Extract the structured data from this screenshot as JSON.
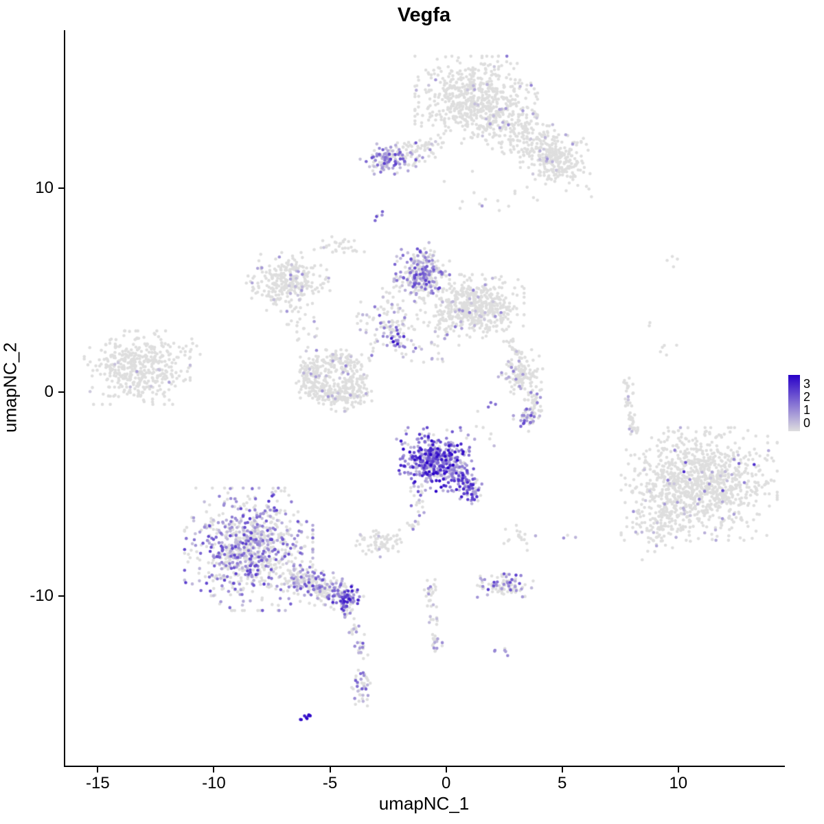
{
  "title": "Vegfa",
  "axes": {
    "x": {
      "label": "umapNC_1",
      "ticks": [
        -15,
        -10,
        -5,
        0,
        5,
        10
      ]
    },
    "y": {
      "label": "umapNC_2",
      "ticks": [
        10,
        0,
        -10
      ]
    }
  },
  "legend": {
    "labels": [
      "3",
      "2",
      "1",
      "0"
    ],
    "color_high": "#2800C8",
    "color_low": "#DEDEDE"
  },
  "chart_data": {
    "type": "scatter",
    "title": "Vegfa",
    "xlabel": "umapNC_1",
    "ylabel": "umapNC_2",
    "xlim": [
      -16.4,
      14.5
    ],
    "ylim": [
      -18.3,
      17.7
    ],
    "grid": false,
    "legend_position": "right",
    "point_radius": 2.3,
    "color_scale": {
      "low": "#DEDEDE",
      "high": "#2800C8",
      "domain": [
        0,
        3
      ]
    },
    "clusters": [
      {
        "name": "top-main",
        "shape": "blob",
        "cx": 1.3,
        "cy": 14.3,
        "sx": 1.1,
        "sy": 0.9,
        "n": 620,
        "frac": 0.04,
        "vmin": 0.3,
        "vmax": 1.4
      },
      {
        "name": "top-right-arm",
        "shape": "arm",
        "x1": 2.6,
        "y1": 13.4,
        "x2": 5.5,
        "y2": 10.9,
        "jitter": 0.6,
        "n": 300,
        "frac": 0.03,
        "vmin": 0.3,
        "vmax": 1.2
      },
      {
        "name": "top-right-blob",
        "shape": "blob",
        "cx": 4.5,
        "cy": 11.4,
        "sx": 0.55,
        "sy": 0.45,
        "n": 110,
        "frac": 0.04,
        "vmin": 0.3,
        "vmax": 1.2
      },
      {
        "name": "top-below-sparse",
        "shape": "blob",
        "cx": 1.9,
        "cy": 9.6,
        "sx": 1.1,
        "sy": 0.6,
        "n": 16,
        "frac": 0.1,
        "vmin": 0.4,
        "vmax": 1.2
      },
      {
        "name": "topleft-purple",
        "shape": "blob",
        "cx": -2.5,
        "cy": 11.45,
        "sx": 0.5,
        "sy": 0.32,
        "n": 130,
        "frac": 0.55,
        "vmin": 0.4,
        "vmax": 2.2
      },
      {
        "name": "topleft-trail",
        "shape": "arm",
        "x1": -1.7,
        "y1": 11.6,
        "x2": -0.2,
        "y2": 12.2,
        "jitter": 0.3,
        "n": 55,
        "frac": 0.1,
        "vmin": 0.3,
        "vmax": 1.2
      },
      {
        "name": "connector-dots",
        "shape": "blob",
        "cx": -2.9,
        "cy": 8.7,
        "sx": 0.12,
        "sy": 0.15,
        "n": 5,
        "frac": 0.8,
        "vmin": 1.0,
        "vmax": 2.0
      },
      {
        "name": "mid-gray-left",
        "shape": "blob",
        "cx": -6.8,
        "cy": 5.4,
        "sx": 0.75,
        "sy": 0.6,
        "n": 280,
        "frac": 0.06,
        "vmin": 0.3,
        "vmax": 1.3
      },
      {
        "name": "mid-left-specks",
        "shape": "blob",
        "cx": -4.6,
        "cy": 7.15,
        "sx": 0.45,
        "sy": 0.22,
        "n": 30,
        "frac": 0.06,
        "vmin": 0.3,
        "vmax": 1.0
      },
      {
        "name": "mid-left-specks2",
        "shape": "blob",
        "cx": -6.2,
        "cy": 3.4,
        "sx": 0.4,
        "sy": 0.5,
        "n": 22,
        "frac": 0.08,
        "vmin": 0.3,
        "vmax": 1.0
      },
      {
        "name": "horseshoe-a",
        "shape": "blob",
        "cx": -5.8,
        "cy": 0.9,
        "sx": 0.4,
        "sy": 0.5,
        "n": 110,
        "frac": 0.06,
        "vmin": 0.3,
        "vmax": 1.3
      },
      {
        "name": "horseshoe-b",
        "shape": "blob",
        "cx": -5.0,
        "cy": -0.1,
        "sx": 0.55,
        "sy": 0.35,
        "n": 130,
        "frac": 0.06,
        "vmin": 0.3,
        "vmax": 1.3
      },
      {
        "name": "horseshoe-c",
        "shape": "blob",
        "cx": -3.9,
        "cy": 0.35,
        "sx": 0.35,
        "sy": 0.55,
        "n": 110,
        "frac": 0.08,
        "vmin": 0.3,
        "vmax": 1.5
      },
      {
        "name": "horseshoe-top",
        "shape": "blob",
        "cx": -4.7,
        "cy": 1.5,
        "sx": 0.5,
        "sy": 0.3,
        "n": 85,
        "frac": 0.06,
        "vmin": 0.3,
        "vmax": 1.3
      },
      {
        "name": "mid-purple-cluster",
        "shape": "blob",
        "cx": -1.05,
        "cy": 5.7,
        "sx": 0.5,
        "sy": 0.55,
        "n": 260,
        "frac": 0.5,
        "vmin": 0.4,
        "vmax": 2.2
      },
      {
        "name": "mid-gray-right",
        "shape": "blob",
        "cx": 1.2,
        "cy": 4.2,
        "sx": 0.9,
        "sy": 0.65,
        "n": 520,
        "frac": 0.05,
        "vmin": 0.3,
        "vmax": 1.4
      },
      {
        "name": "mid-between",
        "shape": "blob",
        "cx": -2.4,
        "cy": 3.6,
        "sx": 0.6,
        "sy": 0.75,
        "n": 110,
        "frac": 0.3,
        "vmin": 0.4,
        "vmax": 1.8
      },
      {
        "name": "mid-purple-spot",
        "shape": "blob",
        "cx": -2.3,
        "cy": 2.5,
        "sx": 0.2,
        "sy": 0.28,
        "n": 20,
        "frac": 0.85,
        "vmin": 1.0,
        "vmax": 2.8
      },
      {
        "name": "mid-scatter-low",
        "shape": "blob",
        "cx": -0.9,
        "cy": 2.1,
        "sx": 0.9,
        "sy": 0.6,
        "n": 28,
        "frac": 0.3,
        "vmin": 0.4,
        "vmax": 1.8
      },
      {
        "name": "mid-above-purple",
        "shape": "blob",
        "cx": -0.9,
        "cy": 6.85,
        "sx": 0.3,
        "sy": 0.2,
        "n": 12,
        "frac": 0.3,
        "vmin": 0.5,
        "vmax": 1.5
      },
      {
        "name": "left-isolated",
        "shape": "blob",
        "cx": -13.3,
        "cy": 1.2,
        "sx": 0.95,
        "sy": 0.75,
        "n": 430,
        "frac": 0.02,
        "vmin": 0.3,
        "vmax": 0.9
      },
      {
        "name": "left-isolated-outliers",
        "shape": "blob",
        "cx": -11.0,
        "cy": 2.1,
        "sx": 0.3,
        "sy": 0.4,
        "n": 8,
        "frac": 0,
        "vmin": 0,
        "vmax": 0
      },
      {
        "name": "center-strong",
        "shape": "blob",
        "cx": -0.45,
        "cy": -3.3,
        "sx": 0.7,
        "sy": 0.65,
        "n": 430,
        "frac": 0.85,
        "vmin": 0.5,
        "vmax": 3.0
      },
      {
        "name": "center-strong-arm",
        "shape": "arm",
        "x1": 0.5,
        "y1": -3.9,
        "x2": 1.2,
        "y2": -5.2,
        "jitter": 0.25,
        "n": 110,
        "frac": 0.75,
        "vmin": 0.5,
        "vmax": 2.6
      },
      {
        "name": "center-trail",
        "shape": "arm",
        "x1": -0.8,
        "y1": -4.8,
        "x2": -1.6,
        "y2": -6.8,
        "jitter": 0.2,
        "n": 28,
        "frac": 0.4,
        "vmin": 0.4,
        "vmax": 2.0
      },
      {
        "name": "small-gray-left",
        "shape": "blob",
        "cx": -2.8,
        "cy": -7.35,
        "sx": 0.45,
        "sy": 0.3,
        "n": 65,
        "frac": 0.08,
        "vmin": 0.3,
        "vmax": 1.0
      },
      {
        "name": "small-gray-right",
        "shape": "blob",
        "cx": 3.1,
        "cy": -7.2,
        "sx": 0.35,
        "sy": 0.28,
        "n": 18,
        "frac": 0.1,
        "vmin": 0.3,
        "vmax": 1.0
      },
      {
        "name": "small-dots-right",
        "shape": "blob",
        "cx": 5.3,
        "cy": -7.2,
        "sx": 0.15,
        "sy": 0.1,
        "n": 3,
        "frac": 0.3,
        "vmin": 0.4,
        "vmax": 1.2
      },
      {
        "name": "bottomleft-main",
        "shape": "blob",
        "cx": -8.5,
        "cy": -7.7,
        "sx": 1.15,
        "sy": 1.25,
        "n": 850,
        "frac": 0.45,
        "vmin": 0.4,
        "vmax": 2.2
      },
      {
        "name": "bottomleft-arm",
        "shape": "arm",
        "x1": -6.6,
        "y1": -9.0,
        "x2": -4.5,
        "y2": -10.0,
        "jitter": 0.4,
        "n": 220,
        "frac": 0.35,
        "vmin": 0.4,
        "vmax": 2.0
      },
      {
        "name": "bottomleft-knot",
        "shape": "blob",
        "cx": -4.3,
        "cy": -10.15,
        "sx": 0.3,
        "sy": 0.33,
        "n": 90,
        "frac": 0.8,
        "vmin": 0.8,
        "vmax": 2.8
      },
      {
        "name": "bottomleft-trail",
        "shape": "arm",
        "x1": -4.3,
        "y1": -10.7,
        "x2": -3.5,
        "y2": -13.1,
        "jitter": 0.15,
        "n": 34,
        "frac": 0.5,
        "vmin": 0.5,
        "vmax": 2.0
      },
      {
        "name": "bottomleft-lower-blob",
        "shape": "blob",
        "cx": -3.65,
        "cy": -14.5,
        "sx": 0.18,
        "sy": 0.5,
        "n": 40,
        "frac": 0.5,
        "vmin": 0.4,
        "vmax": 1.8
      },
      {
        "name": "blue-streak",
        "shape": "arm",
        "x1": -6.3,
        "y1": -16.1,
        "x2": -5.8,
        "y2": -15.8,
        "jitter": 0.05,
        "n": 9,
        "frac": 1.0,
        "vmin": 2.6,
        "vmax": 3.0
      },
      {
        "name": "right-main",
        "shape": "blob",
        "cx": 10.9,
        "cy": -4.5,
        "sx": 1.4,
        "sy": 1.15,
        "n": 1000,
        "frac": 0.035,
        "vmin": 0.3,
        "vmax": 1.3
      },
      {
        "name": "right-lower-lobe",
        "shape": "blob",
        "cx": 9.2,
        "cy": -6.3,
        "sx": 0.55,
        "sy": 0.8,
        "n": 110,
        "frac": 0.04,
        "vmin": 0.3,
        "vmax": 1.2
      },
      {
        "name": "right-purple-specks",
        "shape": "blob",
        "cx": 10.9,
        "cy": -3.6,
        "sx": 1.3,
        "sy": 0.9,
        "n": 8,
        "frac": 0.95,
        "vmin": 1.0,
        "vmax": 2.4
      },
      {
        "name": "right-arm-up",
        "shape": "arm",
        "x1": 8.1,
        "y1": -2.1,
        "x2": 7.8,
        "y2": 0.55,
        "jitter": 0.12,
        "n": 50,
        "frac": 0.04,
        "vmin": 0.3,
        "vmax": 1.0
      },
      {
        "name": "right-top-dots",
        "shape": "blob",
        "cx": 9.55,
        "cy": 2.0,
        "sx": 0.25,
        "sy": 0.25,
        "n": 5,
        "frac": 0,
        "vmin": 0,
        "vmax": 0
      },
      {
        "name": "right-top-pair",
        "shape": "blob",
        "cx": 9.7,
        "cy": 6.45,
        "sx": 0.25,
        "sy": 0.15,
        "n": 4,
        "frac": 0,
        "vmin": 0,
        "vmax": 0
      },
      {
        "name": "right-mid-dot",
        "shape": "blob",
        "cx": 8.6,
        "cy": 3.4,
        "sx": 0.1,
        "sy": 0.1,
        "n": 2,
        "frac": 0,
        "vmin": 0,
        "vmax": 0
      },
      {
        "name": "midbottom-mixed",
        "shape": "blob",
        "cx": 2.55,
        "cy": -9.45,
        "sx": 0.5,
        "sy": 0.3,
        "n": 90,
        "frac": 0.5,
        "vmin": 0.5,
        "vmax": 2.2
      },
      {
        "name": "vertical-trail",
        "shape": "arm",
        "x1": -0.7,
        "y1": -8.9,
        "x2": -0.4,
        "y2": -12.6,
        "jitter": 0.15,
        "n": 48,
        "frac": 0.3,
        "vmin": 0.4,
        "vmax": 1.6
      },
      {
        "name": "purple-pair",
        "shape": "blob",
        "cx": 2.45,
        "cy": -12.7,
        "sx": 0.15,
        "sy": 0.1,
        "n": 6,
        "frac": 0.85,
        "vmin": 0.8,
        "vmax": 1.8
      },
      {
        "name": "rightmid-horseshoe-top",
        "shape": "blob",
        "cx": 3.2,
        "cy": 1.0,
        "sx": 0.4,
        "sy": 0.45,
        "n": 120,
        "frac": 0.07,
        "vmin": 0.3,
        "vmax": 1.4
      },
      {
        "name": "rightmid-horseshoe-right",
        "shape": "blob",
        "cx": 3.7,
        "cy": -0.6,
        "sx": 0.25,
        "sy": 0.55,
        "n": 70,
        "frac": 0.25,
        "vmin": 0.5,
        "vmax": 1.8
      },
      {
        "name": "rightmid-horseshoe-purple",
        "shape": "blob",
        "cx": 3.5,
        "cy": -1.3,
        "sx": 0.25,
        "sy": 0.2,
        "n": 20,
        "frac": 0.7,
        "vmin": 0.8,
        "vmax": 2.2
      },
      {
        "name": "rightmid-connector",
        "shape": "arm",
        "x1": 2.7,
        "y1": 2.9,
        "x2": 3.0,
        "y2": 1.8,
        "jitter": 0.15,
        "n": 18,
        "frac": 0.1,
        "vmin": 0.4,
        "vmax": 1.2
      },
      {
        "name": "rightmid-purple-dot",
        "shape": "blob",
        "cx": 1.9,
        "cy": -0.5,
        "sx": 0.12,
        "sy": 0.12,
        "n": 3,
        "frac": 1.0,
        "vmin": 1.2,
        "vmax": 2.0
      },
      {
        "name": "sparse-center-right",
        "shape": "blob",
        "cx": 1.7,
        "cy": -1.7,
        "sx": 0.4,
        "sy": 0.4,
        "n": 7,
        "frac": 0.3,
        "vmin": 0.4,
        "vmax": 1.4
      }
    ]
  }
}
